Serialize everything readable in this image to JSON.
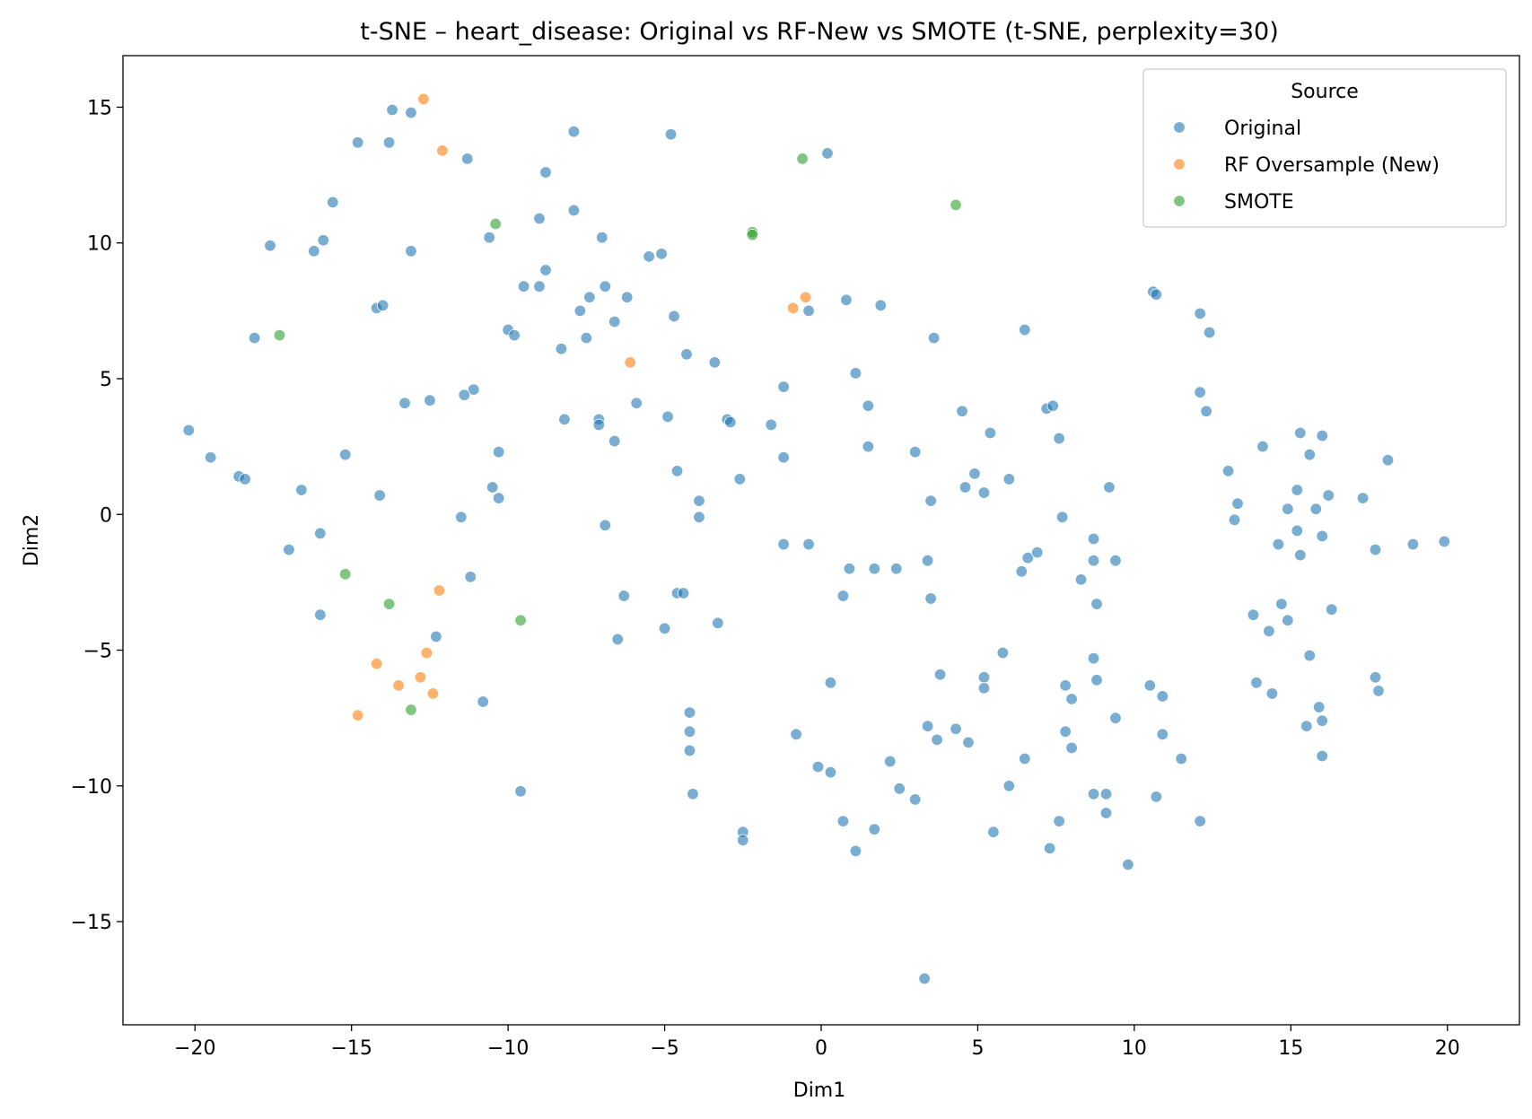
{
  "chart_data": {
    "type": "scatter",
    "title": "t-SNE – heart_disease: Original vs RF-New vs SMOTE (t-SNE, perplexity=30)",
    "xlabel": "Dim1",
    "ylabel": "Dim2",
    "xlim": [
      -22.3,
      22.3
    ],
    "ylim": [
      -18.8,
      16.9
    ],
    "xticks": [
      -20,
      -15,
      -10,
      -5,
      0,
      5,
      10,
      15,
      20
    ],
    "xtick_labels": [
      "−20",
      "−15",
      "−10",
      "−5",
      "0",
      "5",
      "10",
      "15",
      "20"
    ],
    "yticks": [
      15,
      10,
      5,
      0,
      -5,
      -10,
      -15
    ],
    "ytick_labels": [
      "15",
      "10",
      "5",
      "0",
      "−5",
      "−10",
      "−15"
    ],
    "grid": false,
    "legend": {
      "title": "Source",
      "position": "top-right"
    },
    "series": [
      {
        "name": "Original",
        "color": "#1f77b4",
        "points": [
          [
            -13.7,
            14.9
          ],
          [
            -13.1,
            14.8
          ],
          [
            -14.8,
            13.7
          ],
          [
            -13.8,
            13.7
          ],
          [
            -11.3,
            13.1
          ],
          [
            -7.9,
            14.1
          ],
          [
            -4.8,
            14.0
          ],
          [
            0.2,
            13.3
          ],
          [
            -8.8,
            12.6
          ],
          [
            -7.9,
            11.2
          ],
          [
            -15.6,
            11.5
          ],
          [
            -17.6,
            9.9
          ],
          [
            -16.2,
            9.7
          ],
          [
            -15.9,
            10.1
          ],
          [
            -13.1,
            9.7
          ],
          [
            -10.6,
            10.2
          ],
          [
            -9.0,
            10.9
          ],
          [
            -7.0,
            10.2
          ],
          [
            -5.5,
            9.5
          ],
          [
            -5.1,
            9.6
          ],
          [
            -8.8,
            9.0
          ],
          [
            -9.5,
            8.4
          ],
          [
            -9.0,
            8.4
          ],
          [
            -6.9,
            8.4
          ],
          [
            -7.4,
            8.0
          ],
          [
            -6.2,
            8.0
          ],
          [
            -14.2,
            7.6
          ],
          [
            -14.0,
            7.7
          ],
          [
            -18.1,
            6.5
          ],
          [
            -7.7,
            7.5
          ],
          [
            -6.6,
            7.1
          ],
          [
            -4.7,
            7.3
          ],
          [
            -10.0,
            6.8
          ],
          [
            -9.8,
            6.6
          ],
          [
            -7.5,
            6.5
          ],
          [
            -8.3,
            6.1
          ],
          [
            -4.3,
            5.9
          ],
          [
            -3.4,
            5.6
          ],
          [
            -0.4,
            7.5
          ],
          [
            0.8,
            7.9
          ],
          [
            1.9,
            7.7
          ],
          [
            3.6,
            6.5
          ],
          [
            6.5,
            6.8
          ],
          [
            -11.1,
            4.6
          ],
          [
            -11.4,
            4.4
          ],
          [
            -12.5,
            4.2
          ],
          [
            -13.3,
            4.1
          ],
          [
            -5.9,
            4.1
          ],
          [
            -1.2,
            4.7
          ],
          [
            1.1,
            5.2
          ],
          [
            1.5,
            4.0
          ],
          [
            -8.2,
            3.5
          ],
          [
            -7.1,
            3.5
          ],
          [
            -7.1,
            3.3
          ],
          [
            -4.9,
            3.6
          ],
          [
            -3.0,
            3.5
          ],
          [
            -2.9,
            3.4
          ],
          [
            -1.6,
            3.3
          ],
          [
            -6.6,
            2.7
          ],
          [
            4.5,
            3.8
          ],
          [
            5.4,
            3.0
          ],
          [
            7.2,
            3.9
          ],
          [
            7.4,
            4.0
          ],
          [
            7.6,
            2.8
          ],
          [
            -20.2,
            3.1
          ],
          [
            -19.5,
            2.1
          ],
          [
            -15.2,
            2.2
          ],
          [
            -10.3,
            2.3
          ],
          [
            -1.2,
            2.1
          ],
          [
            1.5,
            2.5
          ],
          [
            3.0,
            2.3
          ],
          [
            -18.6,
            1.4
          ],
          [
            -18.4,
            1.3
          ],
          [
            -16.6,
            0.9
          ],
          [
            -14.1,
            0.7
          ],
          [
            -10.5,
            1.0
          ],
          [
            -10.3,
            0.6
          ],
          [
            -4.6,
            1.6
          ],
          [
            -3.9,
            0.5
          ],
          [
            -2.6,
            1.3
          ],
          [
            3.5,
            0.5
          ],
          [
            4.6,
            1.0
          ],
          [
            4.9,
            1.5
          ],
          [
            5.2,
            0.8
          ],
          [
            6.0,
            1.3
          ],
          [
            9.2,
            1.0
          ],
          [
            -11.5,
            -0.1
          ],
          [
            -3.9,
            -0.1
          ],
          [
            -6.9,
            -0.4
          ],
          [
            -17.0,
            -1.3
          ],
          [
            -16.0,
            -0.7
          ],
          [
            -1.2,
            -1.1
          ],
          [
            -0.4,
            -1.1
          ],
          [
            7.7,
            -0.1
          ],
          [
            8.7,
            -0.9
          ],
          [
            -11.2,
            -2.3
          ],
          [
            -16.0,
            -3.7
          ],
          [
            -6.3,
            -3.0
          ],
          [
            -4.6,
            -2.9
          ],
          [
            -4.4,
            -2.9
          ],
          [
            0.9,
            -2.0
          ],
          [
            1.7,
            -2.0
          ],
          [
            2.4,
            -2.0
          ],
          [
            3.4,
            -1.7
          ],
          [
            0.7,
            -3.0
          ],
          [
            3.5,
            -3.1
          ],
          [
            6.4,
            -2.1
          ],
          [
            6.6,
            -1.6
          ],
          [
            6.9,
            -1.4
          ],
          [
            8.3,
            -2.4
          ],
          [
            8.7,
            -1.7
          ],
          [
            9.4,
            -1.7
          ],
          [
            8.8,
            -3.3
          ],
          [
            -12.3,
            -4.5
          ],
          [
            -6.5,
            -4.6
          ],
          [
            -5.0,
            -4.2
          ],
          [
            -3.3,
            -4.0
          ],
          [
            5.8,
            -5.1
          ],
          [
            8.7,
            -5.3
          ],
          [
            -10.8,
            -6.9
          ],
          [
            0.3,
            -6.2
          ],
          [
            3.8,
            -5.9
          ],
          [
            5.2,
            -6.0
          ],
          [
            5.2,
            -6.4
          ],
          [
            7.8,
            -6.3
          ],
          [
            8.8,
            -6.1
          ],
          [
            8.0,
            -6.8
          ],
          [
            -4.2,
            -7.3
          ],
          [
            -4.2,
            -8.0
          ],
          [
            -4.2,
            -8.7
          ],
          [
            -0.8,
            -8.1
          ],
          [
            3.4,
            -7.8
          ],
          [
            3.7,
            -8.3
          ],
          [
            4.3,
            -7.9
          ],
          [
            4.7,
            -8.4
          ],
          [
            7.8,
            -8.0
          ],
          [
            8.0,
            -8.6
          ],
          [
            9.4,
            -7.5
          ],
          [
            10.5,
            -6.3
          ],
          [
            10.9,
            -6.7
          ],
          [
            10.9,
            -8.1
          ],
          [
            11.5,
            -9.0
          ],
          [
            -9.6,
            -10.2
          ],
          [
            -4.1,
            -10.3
          ],
          [
            -0.1,
            -9.3
          ],
          [
            0.3,
            -9.5
          ],
          [
            2.2,
            -9.1
          ],
          [
            2.5,
            -10.1
          ],
          [
            3.0,
            -10.5
          ],
          [
            6.0,
            -10.0
          ],
          [
            6.5,
            -9.0
          ],
          [
            8.7,
            -10.3
          ],
          [
            9.1,
            -10.3
          ],
          [
            9.1,
            -11.0
          ],
          [
            10.7,
            -10.4
          ],
          [
            -2.5,
            -11.7
          ],
          [
            -2.5,
            -12.0
          ],
          [
            0.7,
            -11.3
          ],
          [
            1.1,
            -12.4
          ],
          [
            1.7,
            -11.6
          ],
          [
            5.5,
            -11.7
          ],
          [
            7.3,
            -12.3
          ],
          [
            7.6,
            -11.3
          ],
          [
            9.8,
            -12.9
          ],
          [
            12.1,
            -11.3
          ],
          [
            3.3,
            -17.1
          ],
          [
            10.6,
            8.2
          ],
          [
            10.7,
            8.1
          ],
          [
            12.1,
            7.4
          ],
          [
            12.4,
            6.7
          ],
          [
            12.1,
            4.5
          ],
          [
            12.3,
            3.8
          ],
          [
            14.1,
            2.5
          ],
          [
            15.3,
            3.0
          ],
          [
            15.6,
            2.2
          ],
          [
            16.0,
            2.9
          ],
          [
            13.0,
            1.6
          ],
          [
            18.1,
            2.0
          ],
          [
            13.3,
            0.4
          ],
          [
            15.2,
            0.9
          ],
          [
            16.2,
            0.7
          ],
          [
            17.3,
            0.6
          ],
          [
            13.2,
            -0.2
          ],
          [
            14.9,
            0.2
          ],
          [
            15.8,
            0.2
          ],
          [
            15.2,
            -0.6
          ],
          [
            16.0,
            -0.8
          ],
          [
            14.6,
            -1.1
          ],
          [
            15.3,
            -1.5
          ],
          [
            17.7,
            -1.3
          ],
          [
            18.9,
            -1.1
          ],
          [
            19.9,
            -1.0
          ],
          [
            13.8,
            -3.7
          ],
          [
            14.3,
            -4.3
          ],
          [
            14.7,
            -3.3
          ],
          [
            14.9,
            -3.9
          ],
          [
            16.3,
            -3.5
          ],
          [
            15.6,
            -5.2
          ],
          [
            13.9,
            -6.2
          ],
          [
            14.4,
            -6.6
          ],
          [
            15.5,
            -7.8
          ],
          [
            15.9,
            -7.1
          ],
          [
            16.0,
            -7.6
          ],
          [
            16.0,
            -8.9
          ],
          [
            17.7,
            -6.0
          ],
          [
            17.8,
            -6.5
          ]
        ]
      },
      {
        "name": "RF Oversample (New)",
        "color": "#ff7f0e",
        "points": [
          [
            -12.7,
            15.3
          ],
          [
            -12.1,
            13.4
          ],
          [
            -0.5,
            8.0
          ],
          [
            -0.9,
            7.6
          ],
          [
            -6.1,
            5.6
          ],
          [
            -12.2,
            -2.8
          ],
          [
            -12.6,
            -5.1
          ],
          [
            -14.2,
            -5.5
          ],
          [
            -12.8,
            -6.0
          ],
          [
            -13.5,
            -6.3
          ],
          [
            -12.4,
            -6.6
          ],
          [
            -14.8,
            -7.4
          ]
        ]
      },
      {
        "name": "SMOTE",
        "color": "#2ca02c",
        "points": [
          [
            -0.6,
            13.1
          ],
          [
            4.3,
            11.4
          ],
          [
            -10.4,
            10.7
          ],
          [
            -2.2,
            10.4
          ],
          [
            -2.2,
            10.3
          ],
          [
            -17.3,
            6.6
          ],
          [
            -15.2,
            -2.2
          ],
          [
            -13.8,
            -3.3
          ],
          [
            -9.6,
            -3.9
          ],
          [
            -13.1,
            -7.2
          ]
        ]
      }
    ]
  }
}
